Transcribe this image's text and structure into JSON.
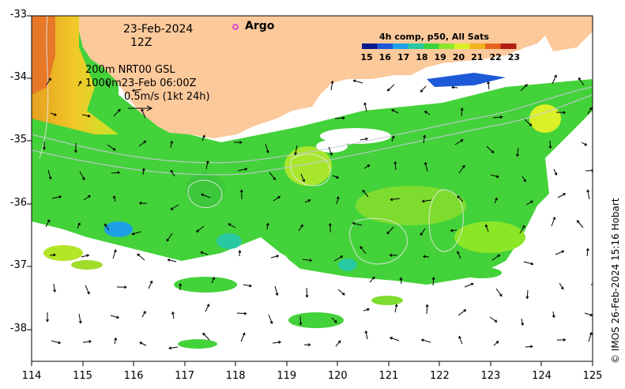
{
  "header": {
    "date": "23-Feb-2024",
    "hour": "12Z",
    "legend_argo": "Argo"
  },
  "annotation": {
    "line1": "200m  NRT00 GSL",
    "line2": "1000m23-Feb 06:00Z",
    "scale_text": "0.5m/s (1kt 24h)"
  },
  "colorbar": {
    "title": "4h comp, p50, All Sats",
    "ticks": [
      "15",
      "16",
      "17",
      "18",
      "19",
      "20",
      "21",
      "22",
      "23"
    ],
    "colors": [
      "#0a1a8c",
      "#1e5ad8",
      "#1ea0e6",
      "#28c8a0",
      "#3cd23c",
      "#8ce628",
      "#dcf028",
      "#f0b41e",
      "#e6641e",
      "#b41e14"
    ]
  },
  "axes": {
    "x_ticks": [
      "114",
      "115",
      "116",
      "117",
      "118",
      "119",
      "120",
      "121",
      "122",
      "123",
      "124",
      "125"
    ],
    "y_ticks": [
      "-33",
      "-34",
      "-35",
      "-36",
      "-37",
      "-38"
    ]
  },
  "colors": {
    "land": "#fcc99b",
    "sst_main": "#44d23a"
  },
  "credit": "© IMOS 26-Feb-2024 15:16 Hobart"
}
